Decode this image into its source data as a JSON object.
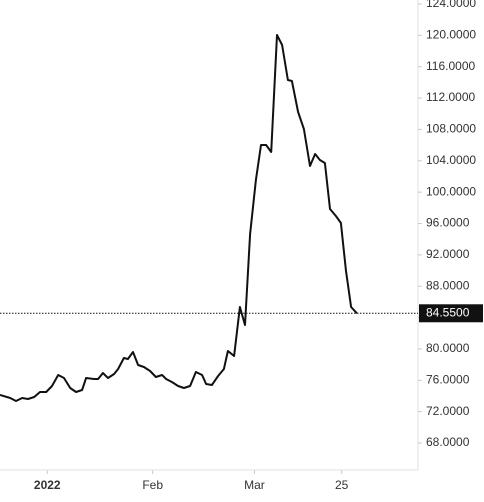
{
  "chart_data": {
    "type": "line",
    "x": [
      -10.0,
      -7.2,
      -5.6,
      -3.9,
      -2.3,
      -0.6,
      1.0,
      2.7,
      4.3,
      6.0,
      7.6,
      9.3,
      10.9,
      12.6,
      13.7,
      15.9,
      17.0,
      18.3,
      19.7,
      21.4,
      22.5,
      24.1,
      25.2,
      26.6,
      28.0,
      29.6,
      31.3,
      32.9,
      34.6,
      35.7,
      37.3,
      39.0,
      40.6,
      42.3,
      43.9,
      45.6,
      46.7,
      48.3,
      50.0,
      51.6,
      52.7,
      54.4,
      56.0,
      57.4,
      58.8,
      60.4,
      61.8,
      63.2,
      64.6,
      66.2,
      67.6,
      69.2,
      70.3,
      72.0,
      73.6,
      75.3,
      76.7,
      78.0,
      79.4,
      80.8,
      82.4,
      83.8,
      85.2,
      86.6,
      88.2
    ],
    "series": [
      {
        "color": "#111111",
        "values": [
          74.13,
          73.74,
          73.36,
          73.74,
          73.62,
          73.87,
          74.51,
          74.51,
          75.28,
          76.68,
          76.3,
          75.02,
          74.51,
          74.77,
          76.3,
          76.17,
          76.17,
          76.93,
          76.3,
          76.81,
          77.44,
          78.85,
          78.72,
          79.61,
          77.95,
          77.7,
          77.19,
          76.42,
          76.68,
          76.17,
          75.79,
          75.28,
          75.02,
          75.28,
          77.06,
          76.68,
          75.53,
          75.4,
          76.55,
          77.44,
          79.74,
          79.1,
          85.35,
          83.06,
          94.66,
          101.55,
          106.02,
          106.02,
          105.12,
          120.05,
          118.77,
          114.31,
          114.18,
          110.22,
          108.06,
          103.34,
          104.87,
          104.1,
          103.72,
          97.85,
          96.96,
          96.07,
          89.94,
          85.35,
          84.55
        ]
      }
    ],
    "xlim": [
      -10,
      105
    ],
    "xticks": [
      {
        "value": 3,
        "label": "2022"
      },
      {
        "value": 32,
        "label": "Feb"
      },
      {
        "value": 60,
        "label": "Mar"
      },
      {
        "value": 84,
        "label": "25"
      }
    ],
    "ylim": [
      64.56,
      124.51
    ],
    "yticks": [
      {
        "value": 68,
        "label": "68.0000"
      },
      {
        "value": 72,
        "label": "72.0000"
      },
      {
        "value": 76,
        "label": "76.0000"
      },
      {
        "value": 80,
        "label": "80.0000"
      },
      {
        "value": 84,
        "label": "84.0000"
      },
      {
        "value": 88,
        "label": "88.0000"
      },
      {
        "value": 92,
        "label": "92.0000"
      },
      {
        "value": 96,
        "label": "96.0000"
      },
      {
        "value": 100,
        "label": "100.0000"
      },
      {
        "value": 104,
        "label": "104.0000"
      },
      {
        "value": 108,
        "label": "108.0000"
      },
      {
        "value": 112,
        "label": "112.0000"
      },
      {
        "value": 116,
        "label": "116.0000"
      },
      {
        "value": 120,
        "label": "120.0000"
      },
      {
        "value": 124,
        "label": "124.0000"
      }
    ],
    "last_price": {
      "value": 84.55,
      "label": "84.5500"
    }
  }
}
